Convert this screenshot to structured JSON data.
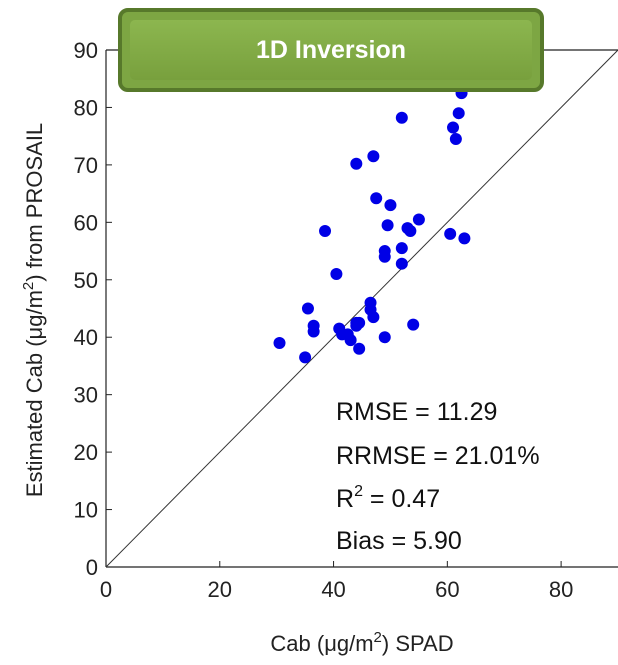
{
  "banner": {
    "title": "1D Inversion"
  },
  "chart_data": {
    "type": "scatter",
    "xlabel": "Cab (μg/m²) SPAD",
    "ylabel": "Estimated Cab (μg/m²) from PROSAIL",
    "xlim": [
      0,
      90
    ],
    "ylim": [
      0,
      90
    ],
    "xticks": [
      0,
      20,
      40,
      60,
      80
    ],
    "yticks": [
      0,
      10,
      20,
      30,
      40,
      50,
      60,
      70,
      80,
      90
    ],
    "grid": false,
    "marker_color": "#0000e6",
    "reference_line": "1:1",
    "series": [
      {
        "x": [
          30.5,
          35,
          35.5,
          36.5,
          36.5,
          38.5,
          40.5,
          41,
          41.5,
          42.5,
          43,
          44,
          44,
          44,
          44.5,
          44.5,
          46.5,
          46.5,
          47,
          47,
          47.5,
          49,
          49,
          49,
          49.5,
          50,
          52,
          52,
          52,
          53,
          53.5,
          54,
          55,
          60.5,
          61,
          61.5,
          62,
          62.5,
          63
        ],
        "y": [
          39,
          36.5,
          45,
          42,
          41,
          58.5,
          51,
          41.5,
          40.5,
          40.5,
          39.5,
          42,
          42.5,
          70.2,
          38,
          42.5,
          46,
          44.8,
          43.5,
          71.5,
          64.2,
          40,
          54,
          55,
          59.5,
          63,
          52.8,
          55.5,
          78.2,
          59,
          58.5,
          42.2,
          60.5,
          58,
          76.5,
          74.5,
          79,
          82.5,
          57.2
        ]
      }
    ],
    "annotations": [
      {
        "label": "RMSE = 11.29"
      },
      {
        "label": "RRMSE = 21.01%"
      },
      {
        "label": "R",
        "sup": "2",
        "rest": " = 0.47"
      },
      {
        "label": "Bias = 5.90"
      }
    ]
  }
}
